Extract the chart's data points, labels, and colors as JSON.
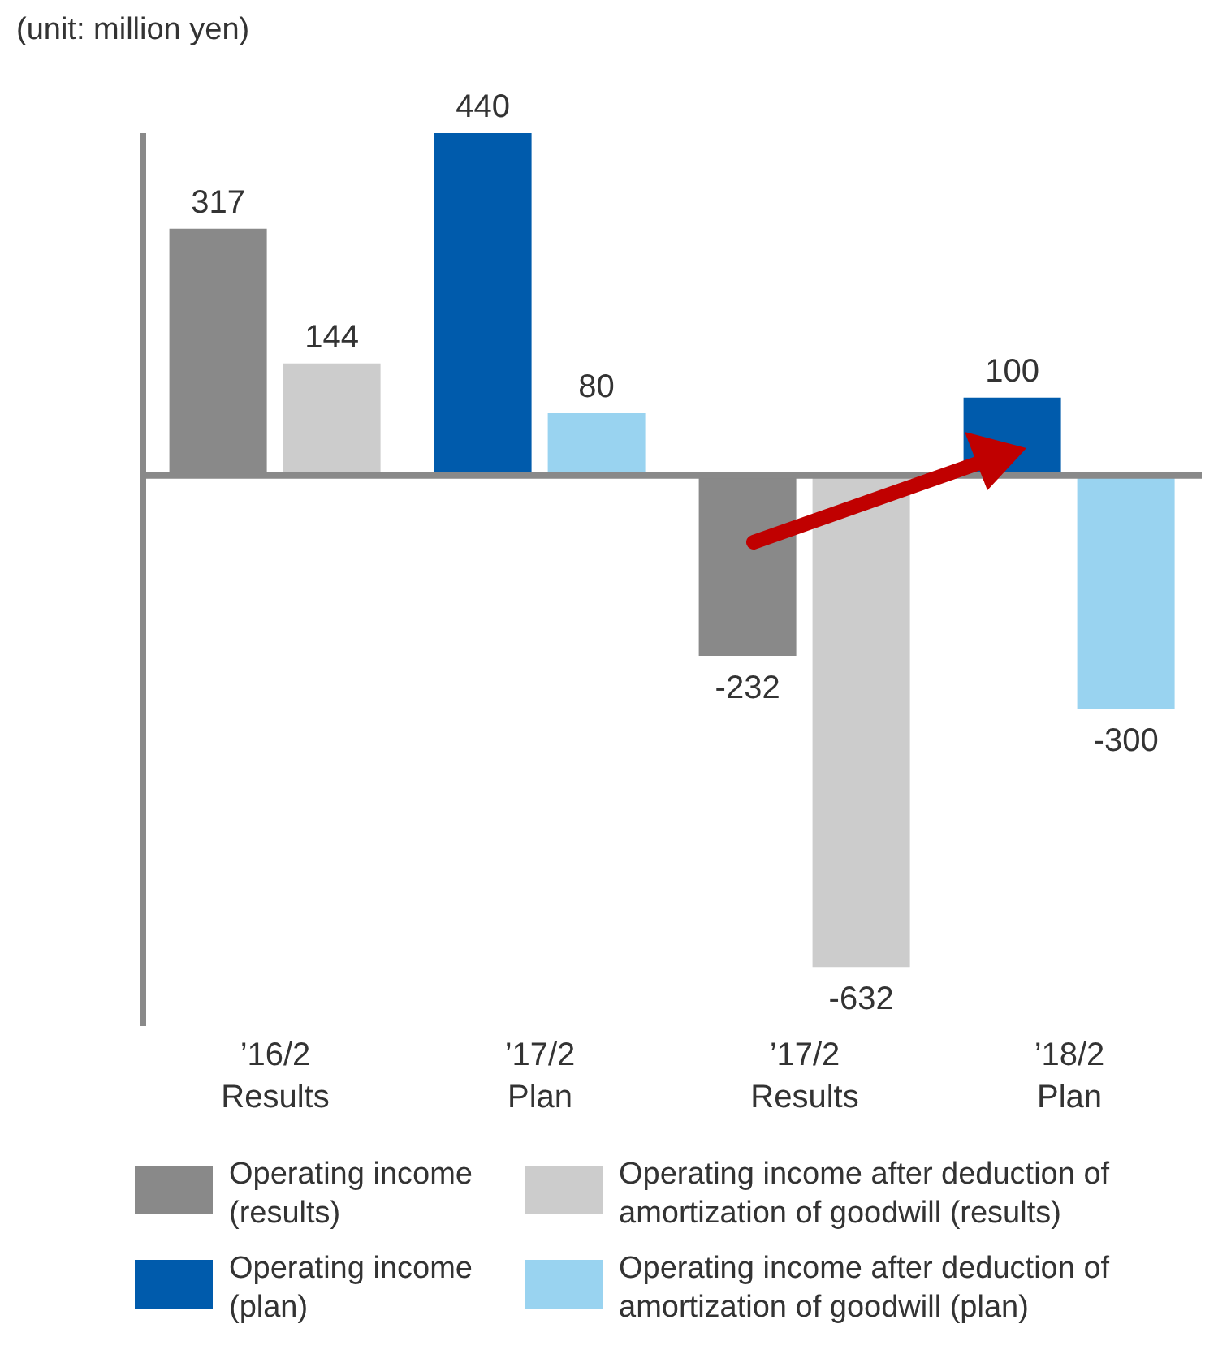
{
  "chart_data": {
    "type": "bar",
    "ylabel": "(unit: million yen)",
    "categories": [
      "’16/2\nResults",
      "’17/2\nPlan",
      "’17/2\nResults",
      "’18/2\nPlan"
    ],
    "series": [
      {
        "name": "Operating income (results)",
        "color": "#898989",
        "values": [
          317,
          null,
          -232,
          null
        ]
      },
      {
        "name": "Operating income after deduction of amortization of goodwill (results)",
        "color": "#cccccc",
        "values": [
          144,
          null,
          -632,
          null
        ]
      },
      {
        "name": "Operating income (plan)",
        "color": "#005bac",
        "values": [
          null,
          440,
          null,
          100
        ]
      },
      {
        "name": "Operating income after deduction of amortization of goodwill (plan)",
        "color": "#99d3f0",
        "values": [
          null,
          80,
          null,
          -300
        ]
      }
    ],
    "data_labels": true,
    "legend": "bottom",
    "grid": false
  }
}
